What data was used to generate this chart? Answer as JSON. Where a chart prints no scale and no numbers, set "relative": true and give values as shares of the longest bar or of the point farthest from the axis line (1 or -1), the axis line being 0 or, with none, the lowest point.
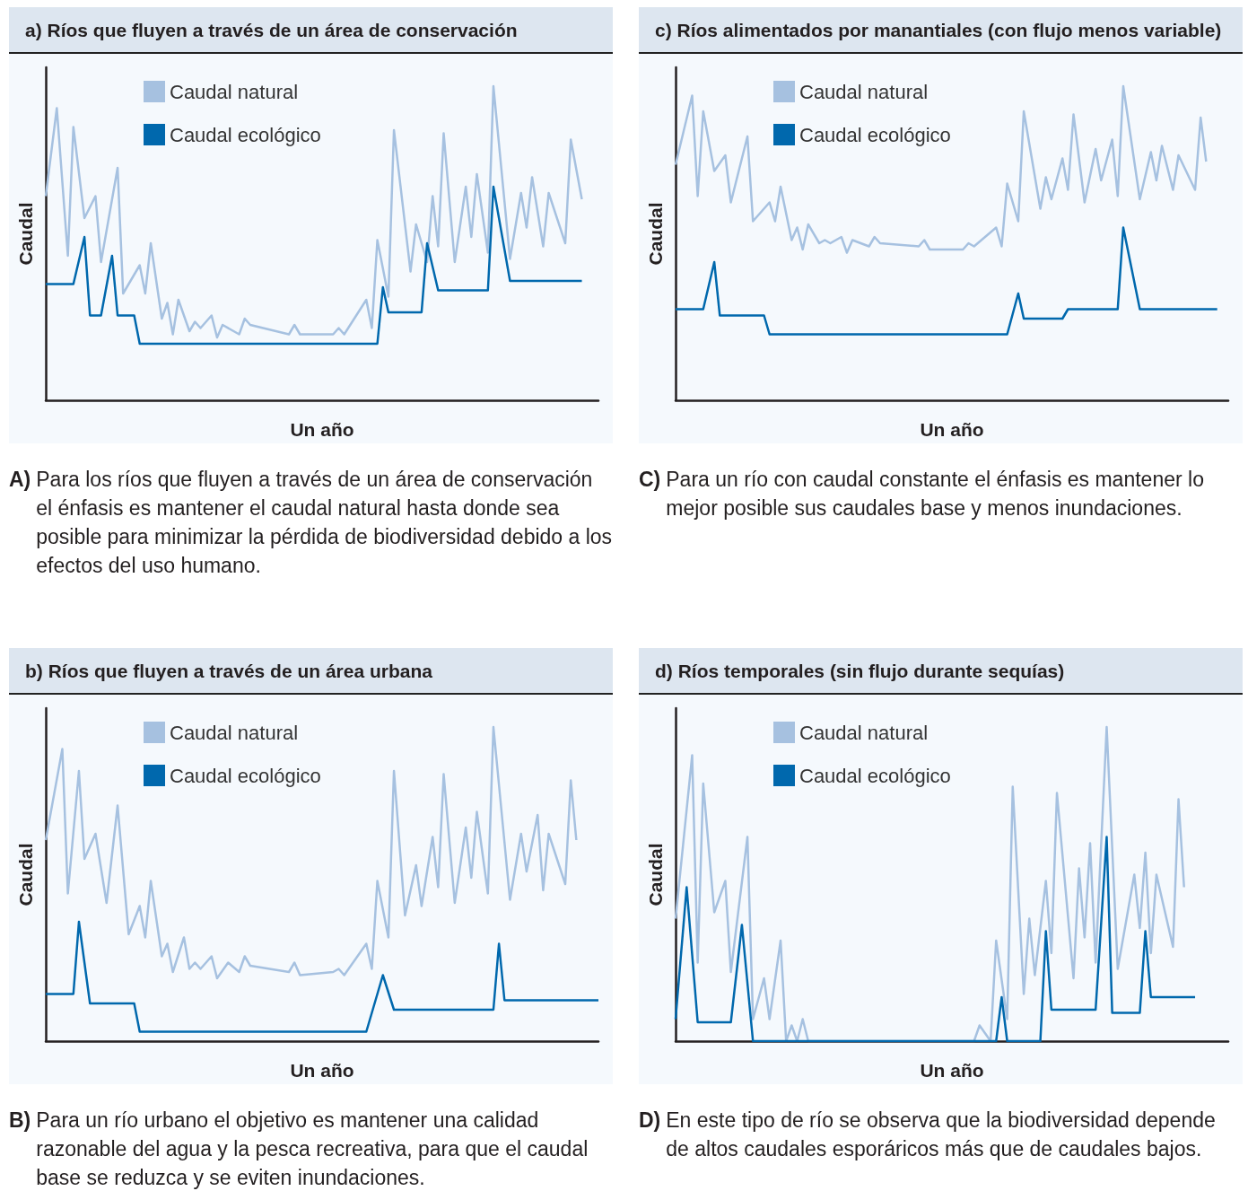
{
  "chart_data": [
    {
      "type": "line",
      "title": "a) Ríos que fluyen a través de un área de conservación",
      "xlabel": "Un año",
      "ylabel": "Caudal",
      "annotations": [
        "A) Para los ríos que fluyen a través de un área de conservación el énfasis es mantener el caudal natural hasta donde sea posible para minimizar la pérdida de biodiversidad debido a los efectos del uso humano."
      ],
      "relative": true,
      "legend": "top left",
      "marker": "none",
      "line_style": "solid",
      "categories": [
        null,
        null,
        null,
        null,
        null,
        null,
        null,
        null,
        null,
        null,
        null,
        null,
        null,
        null,
        null,
        null,
        null,
        null,
        null,
        null,
        null,
        null,
        null,
        null,
        null,
        null,
        null,
        null,
        null,
        null,
        null,
        null,
        null,
        null,
        null,
        null,
        null,
        null,
        null,
        null,
        null,
        null,
        null,
        null,
        null,
        null,
        null,
        null,
        null,
        null,
        null,
        null,
        null,
        null,
        null,
        null,
        null,
        null,
        null,
        null,
        null,
        null,
        null,
        null,
        null,
        null,
        null,
        null,
        null,
        null,
        null,
        null,
        null,
        null,
        null,
        null,
        null,
        null,
        null,
        null,
        null,
        null,
        null,
        null,
        null,
        null,
        null,
        null,
        null,
        null,
        null,
        null,
        null,
        null,
        null,
        null,
        null,
        null,
        null,
        null,
        null
      ],
      "series": [
        {
          "name": "Caudal natural",
          "color": "#a6c1e0",
          "values": [
            0.65,
            null,
            0.93,
            null,
            0.46,
            0.87,
            null,
            0.58,
            null,
            0.65,
            0.44,
            null,
            null,
            0.74,
            0.34,
            null,
            null,
            0.43,
            0.34,
            0.5,
            null,
            0.26,
            0.31,
            0.21,
            0.32,
            null,
            0.22,
            0.25,
            0.23,
            null,
            0.27,
            0.2,
            0.24,
            null,
            null,
            0.21,
            0.26,
            0.24,
            null,
            null,
            null,
            null,
            null,
            null,
            0.21,
            0.24,
            0.21,
            null,
            null,
            null,
            null,
            null,
            0.21,
            0.23,
            0.21,
            null,
            null,
            null,
            0.32,
            0.23,
            0.51,
            null,
            0.33,
            0.86,
            null,
            null,
            0.41,
            0.56,
            null,
            0.44,
            0.65,
            0.49,
            0.85,
            null,
            0.44,
            null,
            0.68,
            0.52,
            0.72,
            null,
            0.47,
            1,
            null,
            null,
            0.45,
            null,
            0.66,
            0.55,
            0.71,
            null,
            0.49,
            0.66,
            null,
            null,
            0.5,
            0.83,
            null,
            0.64,
            null,
            null,
            null
          ]
        },
        {
          "name": "Caudal ecológico",
          "color": "#0068ad",
          "values": [
            0.37,
            null,
            null,
            null,
            null,
            0.37,
            null,
            0.52,
            0.27,
            null,
            0.27,
            null,
            0.46,
            0.27,
            null,
            null,
            0.27,
            0.18,
            null,
            null,
            null,
            null,
            null,
            null,
            null,
            null,
            null,
            null,
            null,
            null,
            null,
            null,
            null,
            null,
            null,
            null,
            null,
            null,
            null,
            null,
            null,
            null,
            null,
            null,
            null,
            null,
            null,
            null,
            null,
            null,
            null,
            null,
            null,
            null,
            null,
            null,
            null,
            null,
            null,
            null,
            0.18,
            0.36,
            0.28,
            null,
            null,
            null,
            null,
            null,
            0.28,
            0.5,
            null,
            0.35,
            null,
            null,
            null,
            null,
            null,
            null,
            null,
            null,
            0.35,
            0.68,
            null,
            null,
            0.38,
            null,
            null,
            null,
            null,
            null,
            null,
            null,
            null,
            null,
            null,
            null,
            null,
            0.38,
            null,
            null,
            null
          ]
        }
      ]
    },
    {
      "type": "line",
      "title": "c) Ríos alimentados por manantiales (con flujo menos variable)",
      "xlabel": "Un año",
      "ylabel": "Caudal",
      "annotations": [
        "C) Para un río con caudal constante el énfasis es mantener lo mejor posible sus caudales base y menos inundaciones."
      ],
      "relative": true,
      "legend": "top left",
      "marker": "none",
      "line_style": "solid",
      "categories": [
        null,
        null,
        null,
        null,
        null,
        null,
        null,
        null,
        null,
        null,
        null,
        null,
        null,
        null,
        null,
        null,
        null,
        null,
        null,
        null,
        null,
        null,
        null,
        null,
        null,
        null,
        null,
        null,
        null,
        null,
        null,
        null,
        null,
        null,
        null,
        null,
        null,
        null,
        null,
        null,
        null,
        null,
        null,
        null,
        null,
        null,
        null,
        null,
        null,
        null,
        null,
        null,
        null,
        null,
        null,
        null,
        null,
        null,
        null,
        null,
        null,
        null,
        null,
        null,
        null,
        null,
        null,
        null,
        null,
        null,
        null,
        null,
        null,
        null,
        null,
        null,
        null,
        null,
        null,
        null,
        null,
        null,
        null,
        null,
        null,
        null,
        null,
        null,
        null,
        null,
        null,
        null,
        null,
        null,
        null,
        null,
        null,
        null,
        null,
        null,
        null
      ],
      "series": [
        {
          "name": "Caudal natural",
          "color": "#a6c1e0",
          "values": [
            0.75,
            null,
            null,
            0.97,
            0.65,
            0.92,
            null,
            0.73,
            null,
            0.78,
            0.63,
            null,
            null,
            0.84,
            0.57,
            null,
            null,
            0.63,
            0.57,
            0.68,
            null,
            0.51,
            0.55,
            0.48,
            0.56,
            null,
            0.5,
            0.51,
            0.5,
            null,
            0.52,
            0.47,
            0.51,
            null,
            null,
            0.49,
            0.52,
            0.5,
            null,
            null,
            null,
            null,
            null,
            null,
            0.49,
            0.51,
            0.48,
            null,
            null,
            null,
            null,
            null,
            0.48,
            0.5,
            0.49,
            null,
            null,
            null,
            0.55,
            0.49,
            0.69,
            null,
            0.57,
            0.92,
            null,
            null,
            0.61,
            0.71,
            0.64,
            null,
            0.77,
            0.67,
            0.91,
            null,
            0.63,
            null,
            0.8,
            0.7,
            null,
            0.83,
            0.65,
            1,
            null,
            null,
            0.64,
            null,
            0.79,
            0.7,
            0.81,
            null,
            0.67,
            0.78,
            null,
            null,
            0.67,
            0.9,
            0.76,
            null,
            null,
            null,
            null
          ]
        },
        {
          "name": "Caudal ecológico",
          "color": "#0068ad",
          "values": [
            0.29,
            null,
            null,
            null,
            null,
            0.29,
            null,
            0.44,
            0.27,
            null,
            null,
            null,
            null,
            null,
            null,
            null,
            0.27,
            0.21,
            null,
            null,
            null,
            null,
            null,
            null,
            null,
            null,
            null,
            null,
            null,
            null,
            null,
            null,
            null,
            null,
            null,
            null,
            null,
            null,
            null,
            null,
            null,
            null,
            null,
            null,
            null,
            null,
            null,
            null,
            null,
            null,
            null,
            null,
            null,
            null,
            null,
            null,
            null,
            null,
            null,
            null,
            0.21,
            null,
            0.34,
            0.26,
            null,
            null,
            null,
            null,
            null,
            null,
            0.26,
            0.29,
            null,
            null,
            null,
            null,
            null,
            null,
            null,
            null,
            0.29,
            0.55,
            null,
            null,
            0.29,
            null,
            null,
            null,
            null,
            null,
            null,
            null,
            null,
            null,
            null,
            null,
            null,
            null,
            0.29,
            null,
            null
          ]
        }
      ]
    },
    {
      "type": "line",
      "title": "b) Ríos que fluyen a través de un área urbana",
      "xlabel": "Un año",
      "ylabel": "Caudal",
      "annotations": [
        "B) Para un río urbano el objetivo es mantener una calidad razonable del agua y la pesca recreativa, para que el caudal base se reduzca y se eviten inundaciones."
      ],
      "relative": true,
      "legend": "top left",
      "marker": "none",
      "line_style": "solid",
      "categories": [
        null,
        null,
        null,
        null,
        null,
        null,
        null,
        null,
        null,
        null,
        null,
        null,
        null,
        null,
        null,
        null,
        null,
        null,
        null,
        null,
        null,
        null,
        null,
        null,
        null,
        null,
        null,
        null,
        null,
        null,
        null,
        null,
        null,
        null,
        null,
        null,
        null,
        null,
        null,
        null,
        null,
        null,
        null,
        null,
        null,
        null,
        null,
        null,
        null,
        null,
        null,
        null,
        null,
        null,
        null,
        null,
        null,
        null,
        null,
        null,
        null,
        null,
        null,
        null,
        null,
        null,
        null,
        null,
        null,
        null,
        null,
        null,
        null,
        null,
        null,
        null,
        null,
        null,
        null,
        null,
        null,
        null,
        null,
        null,
        null,
        null,
        null,
        null,
        null,
        null,
        null,
        null,
        null,
        null,
        null,
        null,
        null,
        null,
        null,
        null,
        null
      ],
      "series": [
        {
          "name": "Caudal natural",
          "color": "#a6c1e0",
          "values": [
            0.64,
            null,
            null,
            0.93,
            0.47,
            null,
            0.86,
            0.58,
            null,
            0.66,
            null,
            0.44,
            null,
            0.75,
            null,
            0.34,
            null,
            0.43,
            0.33,
            0.51,
            null,
            0.27,
            0.31,
            0.22,
            null,
            0.33,
            0.23,
            0.25,
            0.23,
            null,
            0.27,
            0.2,
            null,
            0.25,
            null,
            0.22,
            0.27,
            0.24,
            null,
            null,
            null,
            null,
            null,
            null,
            0.22,
            0.25,
            0.21,
            null,
            null,
            null,
            null,
            null,
            0.22,
            0.23,
            0.21,
            null,
            null,
            null,
            0.31,
            0.23,
            0.51,
            null,
            0.33,
            0.86,
            null,
            0.4,
            null,
            0.56,
            0.43,
            null,
            0.65,
            0.49,
            0.85,
            null,
            0.44,
            null,
            0.68,
            0.52,
            0.73,
            null,
            0.47,
            1,
            null,
            null,
            0.45,
            null,
            0.66,
            0.54,
            null,
            0.72,
            0.48,
            0.66,
            null,
            null,
            0.5,
            0.83,
            0.64,
            null,
            null,
            null,
            null
          ]
        },
        {
          "name": "Caudal ecológico",
          "color": "#0068ad",
          "values": [
            0.15,
            null,
            null,
            null,
            null,
            0.15,
            0.38,
            null,
            0.12,
            null,
            null,
            null,
            null,
            null,
            null,
            null,
            0.12,
            0.03,
            null,
            null,
            null,
            null,
            null,
            null,
            null,
            null,
            null,
            null,
            null,
            null,
            null,
            null,
            null,
            null,
            null,
            null,
            null,
            null,
            null,
            null,
            null,
            null,
            null,
            null,
            null,
            null,
            null,
            null,
            null,
            null,
            null,
            null,
            null,
            null,
            null,
            null,
            null,
            null,
            0.03,
            null,
            null,
            0.21,
            null,
            0.1,
            null,
            null,
            null,
            null,
            null,
            null,
            null,
            null,
            null,
            null,
            null,
            null,
            null,
            null,
            null,
            null,
            null,
            0.1,
            0.31,
            0.13,
            null,
            null,
            null,
            null,
            null,
            null,
            null,
            null,
            null,
            null,
            null,
            null,
            null,
            null,
            null,
            null,
            0.13
          ]
        }
      ]
    },
    {
      "type": "line",
      "title": "d) Ríos temporales (sin flujo durante sequías)",
      "xlabel": "Un año",
      "ylabel": "Caudal",
      "annotations": [
        "D) En este tipo de río se observa que la biodiversidad depende de altos caudales esporáricos más que de caudales bajos."
      ],
      "relative": true,
      "legend": "top left",
      "marker": "none",
      "line_style": "solid",
      "categories": [
        null,
        null,
        null,
        null,
        null,
        null,
        null,
        null,
        null,
        null,
        null,
        null,
        null,
        null,
        null,
        null,
        null,
        null,
        null,
        null,
        null,
        null,
        null,
        null,
        null,
        null,
        null,
        null,
        null,
        null,
        null,
        null,
        null,
        null,
        null,
        null,
        null,
        null,
        null,
        null,
        null,
        null,
        null,
        null,
        null,
        null,
        null,
        null,
        null,
        null,
        null,
        null,
        null,
        null,
        null,
        null,
        null,
        null,
        null,
        null,
        null,
        null,
        null,
        null,
        null,
        null,
        null,
        null,
        null,
        null,
        null,
        null,
        null,
        null,
        null,
        null,
        null,
        null,
        null,
        null,
        null,
        null,
        null,
        null,
        null,
        null,
        null,
        null,
        null,
        null,
        null,
        null,
        null,
        null,
        null,
        null,
        null,
        null,
        null,
        null,
        null
      ],
      "series": [
        {
          "name": "Caudal natural",
          "color": "#a6c1e0",
          "values": [
            0.39,
            null,
            null,
            0.91,
            0.25,
            0.82,
            null,
            0.41,
            null,
            0.51,
            0.22,
            null,
            null,
            0.65,
            0.07,
            null,
            0.2,
            0.07,
            null,
            0.32,
            0,
            0.05,
            0,
            0.07,
            0,
            null,
            null,
            null,
            null,
            null,
            null,
            null,
            null,
            null,
            null,
            null,
            null,
            null,
            null,
            null,
            null,
            null,
            null,
            null,
            null,
            null,
            null,
            null,
            null,
            null,
            null,
            null,
            null,
            null,
            0,
            0.05,
            null,
            0,
            0.32,
            null,
            0.07,
            0.81,
            null,
            0.15,
            0.39,
            0.21,
            null,
            0.51,
            0.28,
            0.79,
            null,
            null,
            0.2,
            0.55,
            0.33,
            0.63,
            0.25,
            null,
            1,
            null,
            0.23,
            null,
            null,
            0.53,
            0.36,
            0.6,
            0.28,
            0.53,
            null,
            null,
            0.3,
            0.77,
            0.49,
            null,
            null,
            null,
            null,
            null,
            null,
            null,
            null
          ]
        },
        {
          "name": "Caudal ecológico",
          "color": "#0068ad",
          "values": [
            0.07,
            null,
            0.49,
            null,
            0.06,
            null,
            null,
            null,
            null,
            null,
            0.06,
            null,
            0.37,
            null,
            0,
            null,
            null,
            null,
            null,
            null,
            null,
            null,
            null,
            null,
            null,
            null,
            null,
            null,
            null,
            null,
            null,
            null,
            null,
            null,
            null,
            null,
            null,
            null,
            null,
            null,
            null,
            null,
            null,
            null,
            null,
            null,
            null,
            null,
            null,
            null,
            null,
            null,
            null,
            null,
            null,
            null,
            null,
            null,
            0,
            0.14,
            0,
            null,
            null,
            null,
            null,
            null,
            0,
            0.35,
            0.1,
            null,
            null,
            null,
            null,
            null,
            null,
            null,
            0.1,
            null,
            0.65,
            0.09,
            null,
            null,
            null,
            null,
            0.09,
            0.35,
            0.14,
            null,
            null,
            null,
            null,
            null,
            null,
            null,
            0.14,
            null,
            null,
            null,
            null,
            null,
            null
          ]
        }
      ]
    }
  ]
}
